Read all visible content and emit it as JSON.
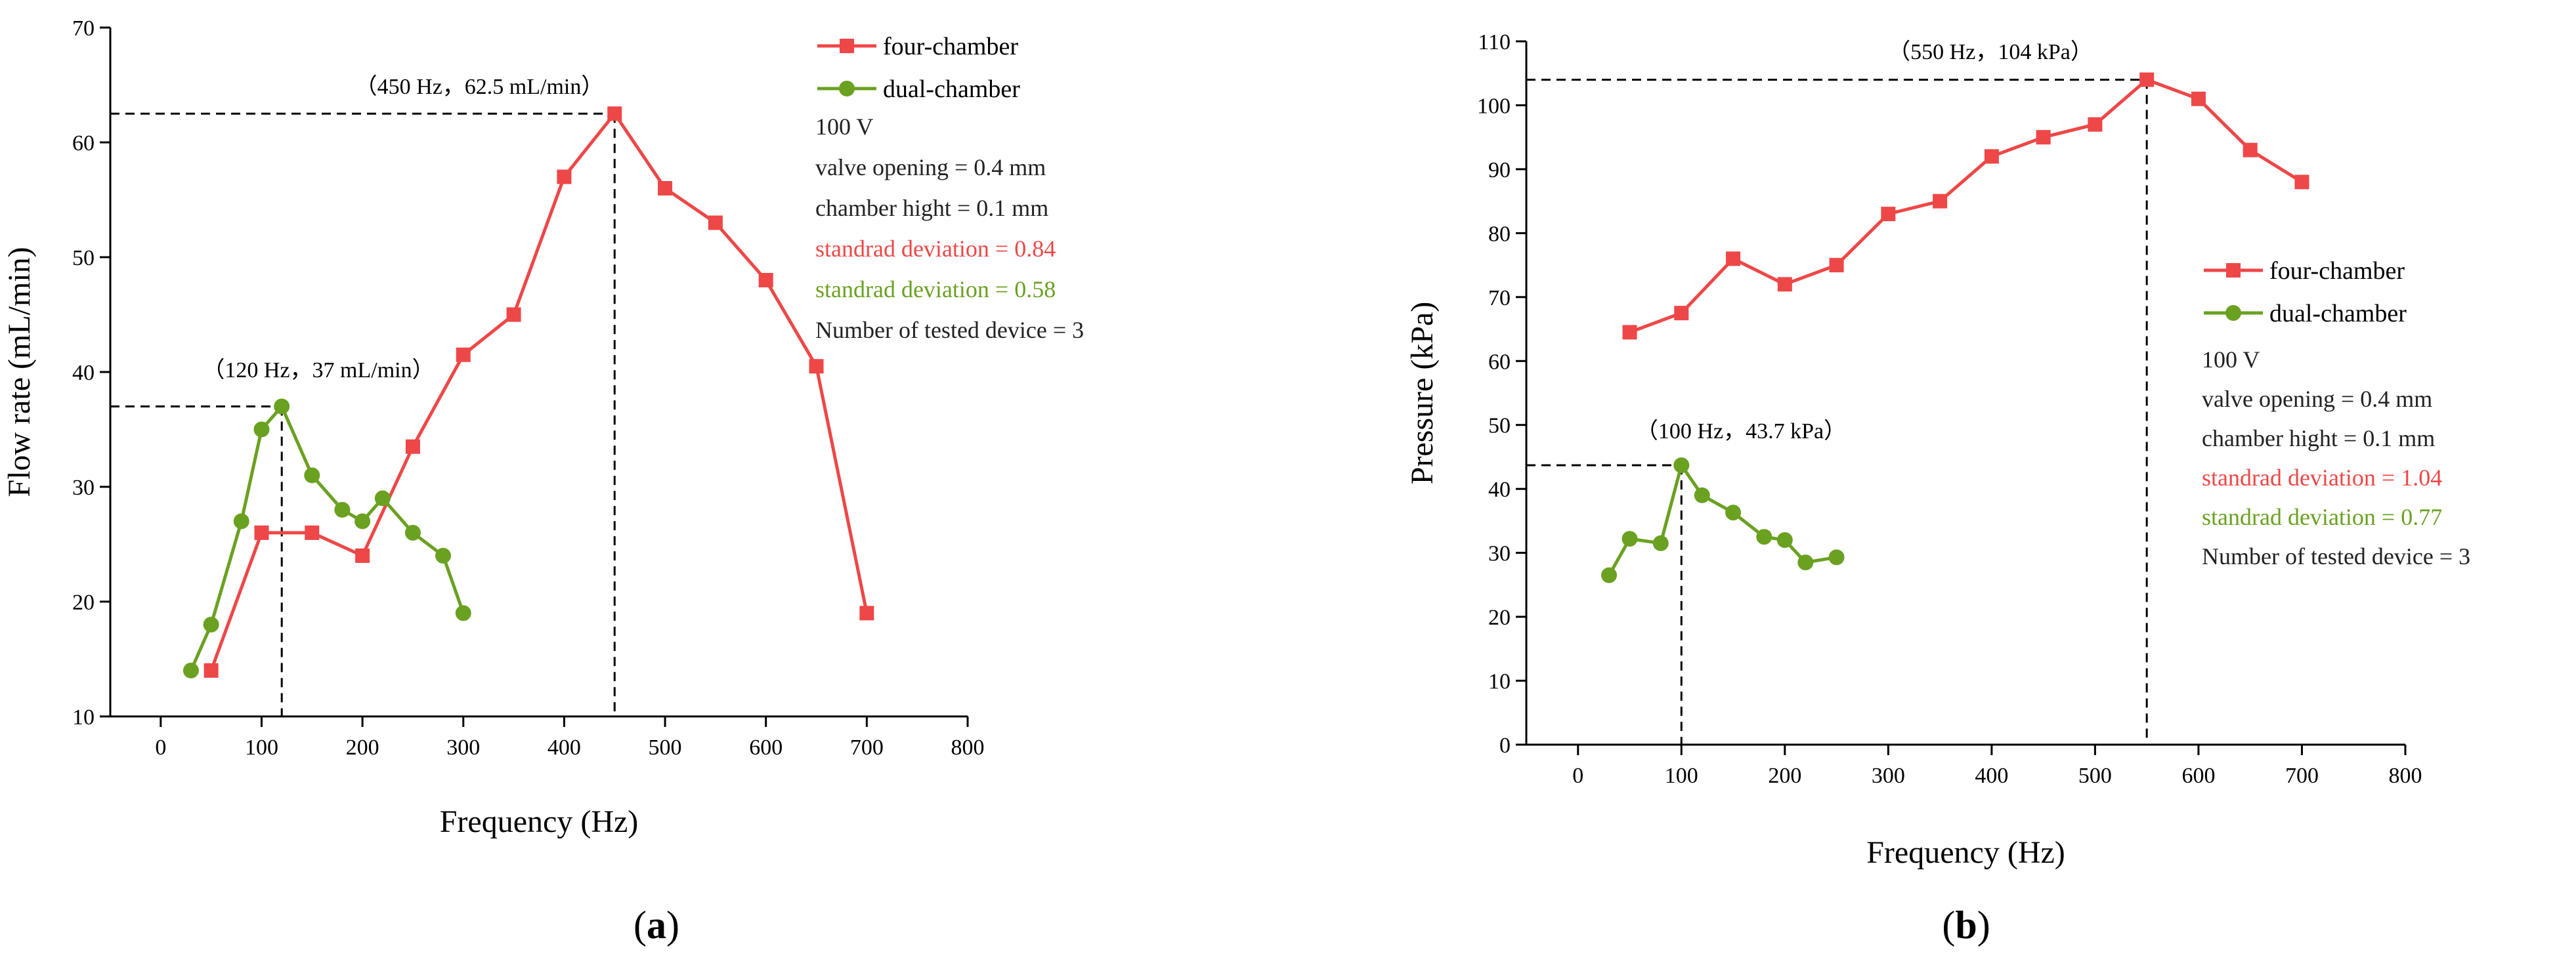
{
  "chart_data": [
    {
      "type": "line",
      "panel_label": "a",
      "xlabel": "Frequency (Hz)",
      "ylabel": "Flow rate (mL/min)",
      "xlim": [
        -50,
        800
      ],
      "ylim": [
        10,
        70
      ],
      "xticks": [
        0,
        100,
        200,
        300,
        400,
        500,
        600,
        700,
        800
      ],
      "yticks": [
        10,
        20,
        30,
        40,
        50,
        60,
        70
      ],
      "grid": false,
      "legend_position": "top-right",
      "series": [
        {
          "name": "four-chamber",
          "color": "#ee4747",
          "marker": "square",
          "x": [
            50,
            100,
            150,
            200,
            250,
            300,
            350,
            400,
            450,
            500,
            550,
            600,
            650,
            700
          ],
          "y": [
            14,
            26,
            26,
            24,
            33.5,
            41.5,
            45,
            57,
            62.5,
            56,
            53,
            48,
            40.5,
            19
          ]
        },
        {
          "name": "dual-chamber",
          "color": "#6aa121",
          "marker": "circle",
          "x": [
            30,
            50,
            80,
            100,
            120,
            150,
            180,
            200,
            220,
            250,
            280,
            300
          ],
          "y": [
            14,
            18,
            27,
            35,
            37,
            31,
            28,
            27,
            29,
            26,
            24,
            19
          ]
        }
      ],
      "annotations": [
        {
          "text": "（450 Hz，62.5 mL/min）",
          "x": 450,
          "y": 62.5
        },
        {
          "text": "（120 Hz，37 mL/min）",
          "x": 120,
          "y": 37
        }
      ],
      "info_lines": [
        {
          "text": "100 V",
          "color": "#222222"
        },
        {
          "text": "valve opening = 0.4 mm",
          "color": "#222222"
        },
        {
          "text": "chamber hight = 0.1 mm",
          "color": "#222222"
        },
        {
          "text": "standrad deviation = 0.84",
          "color": "#ee4747"
        },
        {
          "text": "standrad deviation = 0.58",
          "color": "#6aa121"
        },
        {
          "text": "Number of tested device = 3",
          "color": "#222222"
        }
      ]
    },
    {
      "type": "line",
      "panel_label": "b",
      "xlabel": "Frequency (Hz)",
      "ylabel": "Pressure (kPa)",
      "xlim": [
        -50,
        800
      ],
      "ylim": [
        0,
        110
      ],
      "xticks": [
        0,
        100,
        200,
        300,
        400,
        500,
        600,
        700,
        800
      ],
      "yticks": [
        0,
        10,
        20,
        30,
        40,
        50,
        60,
        70,
        80,
        90,
        100,
        110
      ],
      "grid": false,
      "legend_position": "right",
      "series": [
        {
          "name": "four-chamber",
          "color": "#ee4747",
          "marker": "square",
          "x": [
            50,
            100,
            150,
            200,
            250,
            300,
            350,
            400,
            450,
            500,
            550,
            600,
            650,
            700
          ],
          "y": [
            64.5,
            67.5,
            76,
            72,
            75,
            83,
            85,
            92,
            95,
            97,
            104,
            101,
            93,
            88
          ]
        },
        {
          "name": "dual-chamber",
          "color": "#6aa121",
          "marker": "circle",
          "x": [
            30,
            50,
            80,
            100,
            120,
            150,
            180,
            200,
            220,
            250
          ],
          "y": [
            26.5,
            32.2,
            31.5,
            43.7,
            39,
            36.3,
            32.5,
            32,
            28.5,
            29.3
          ]
        }
      ],
      "annotations": [
        {
          "text": "（550 Hz，104 kPa）",
          "x": 550,
          "y": 104
        },
        {
          "text": "（100 Hz，43.7 kPa）",
          "x": 100,
          "y": 43.7
        }
      ],
      "info_lines": [
        {
          "text": "100 V",
          "color": "#222222"
        },
        {
          "text": "valve opening = 0.4 mm",
          "color": "#222222"
        },
        {
          "text": "chamber hight = 0.1 mm",
          "color": "#222222"
        },
        {
          "text": "standrad deviation = 1.04",
          "color": "#ee4747"
        },
        {
          "text": "standrad deviation = 0.77",
          "color": "#6aa121"
        },
        {
          "text": "Number of tested device = 3",
          "color": "#222222"
        }
      ]
    }
  ]
}
